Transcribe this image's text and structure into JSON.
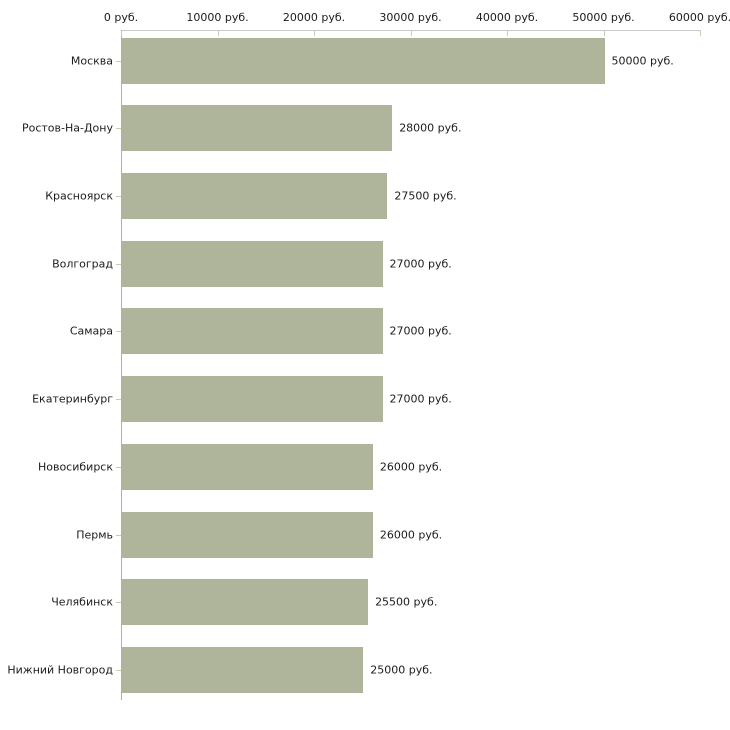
{
  "chart_data": {
    "type": "bar",
    "orientation": "horizontal",
    "title": "",
    "xlabel": "",
    "ylabel": "",
    "xlim": [
      0,
      60000
    ],
    "x_ticks": [
      0,
      10000,
      20000,
      30000,
      40000,
      50000,
      60000
    ],
    "x_tick_labels": [
      "0 руб.",
      "10000 руб.",
      "20000 руб.",
      "30000 руб.",
      "40000 руб.",
      "50000 руб.",
      "60000 руб."
    ],
    "categories": [
      "Москва",
      "Ростов-На-Дону",
      "Красноярск",
      "Волгоград",
      "Самара",
      "Екатеринбург",
      "Новосибирск",
      "Пермь",
      "Челябинск",
      "Нижний Новгород"
    ],
    "values": [
      50000,
      28000,
      27500,
      27000,
      27000,
      27000,
      26000,
      26000,
      25500,
      25000
    ],
    "value_labels": [
      "50000 руб.",
      "28000 руб.",
      "27500 руб.",
      "27000 руб.",
      "27000 руб.",
      "27000 руб.",
      "26000 руб.",
      "26000 руб.",
      "25500 руб.",
      "25000 руб."
    ],
    "grid": false,
    "legend": false,
    "axis_labels_position": "top"
  },
  "colors": {
    "bar": "#afb59b",
    "axis_top_line": "#cbcbcb",
    "axis_left_line": "#b1b1b1",
    "tick": "#c8cbae",
    "text": "#1c1c1c",
    "background": "#ffffff"
  }
}
